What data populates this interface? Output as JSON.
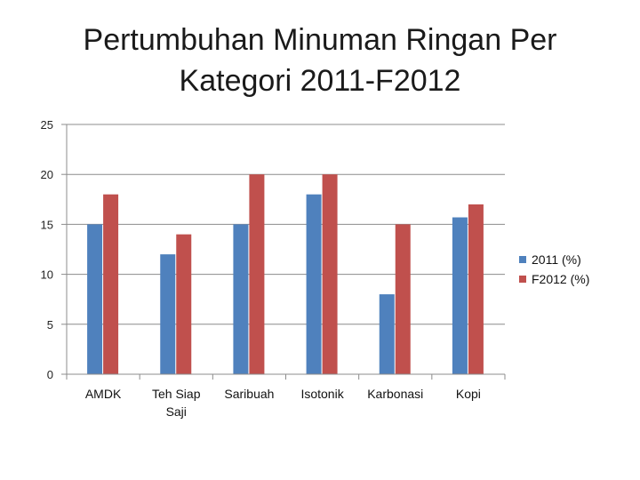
{
  "chart_data": {
    "type": "bar",
    "title_lines": [
      "Pertumbuhan Minuman Ringan Per",
      "Kategori 2011-F2012"
    ],
    "categories": [
      [
        "AMDK"
      ],
      [
        "Teh Siap",
        "Saji"
      ],
      [
        "Saribuah"
      ],
      [
        "Isotonik"
      ],
      [
        "Karbonasi"
      ],
      [
        "Kopi"
      ]
    ],
    "series": [
      {
        "name": "2011 (%)",
        "color": "#4F81BD",
        "values": [
          15,
          12,
          15,
          18,
          8,
          15.7
        ]
      },
      {
        "name": "F2012 (%)",
        "color": "#C0504D",
        "values": [
          18,
          14,
          20,
          20,
          15,
          17
        ]
      }
    ],
    "ylim": [
      0,
      25
    ],
    "yticks": [
      0,
      5,
      10,
      15,
      20,
      25
    ],
    "grid": true,
    "legend_position": "right"
  }
}
